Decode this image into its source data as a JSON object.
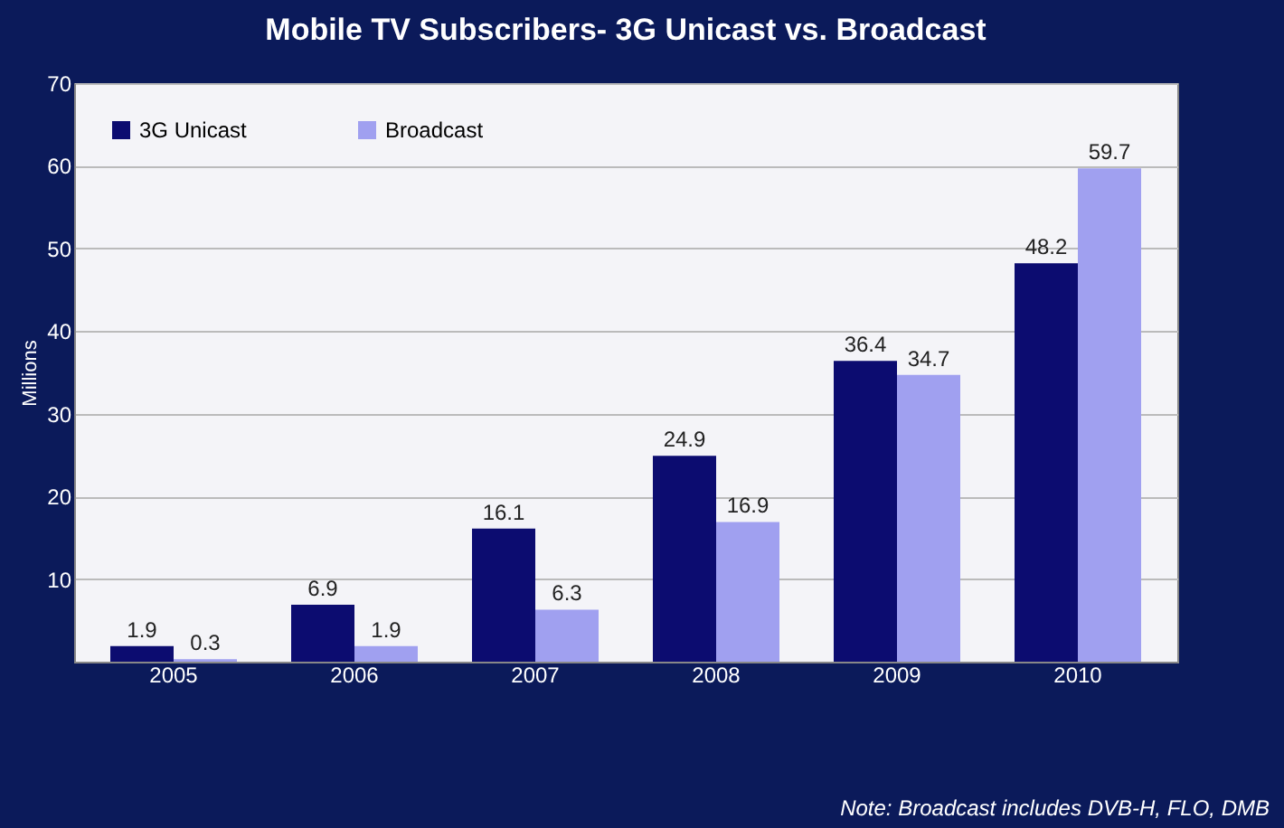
{
  "chart_data": {
    "type": "bar",
    "title": "Mobile TV Subscribers- 3G Unicast vs. Broadcast",
    "ylabel": "Millions",
    "categories": [
      "2005",
      "2006",
      "2007",
      "2008",
      "2009",
      "2010"
    ],
    "series": [
      {
        "name": "3G Unicast",
        "color": "#0c0c70",
        "values": [
          1.9,
          6.9,
          16.1,
          24.9,
          36.4,
          48.2
        ]
      },
      {
        "name": "Broadcast",
        "color": "#a0a0f0",
        "values": [
          0.3,
          1.9,
          6.3,
          16.9,
          34.7,
          59.7
        ]
      }
    ],
    "ylim": [
      0,
      70
    ],
    "yticks": [
      {
        "value": 0,
        "label": null
      },
      10,
      20,
      30,
      40,
      50,
      60,
      70
    ],
    "grid": "y",
    "legend": "top left",
    "data_labels": true,
    "annotations": [
      "Note: Broadcast includes DVB-H, FLO, DMB"
    ]
  }
}
